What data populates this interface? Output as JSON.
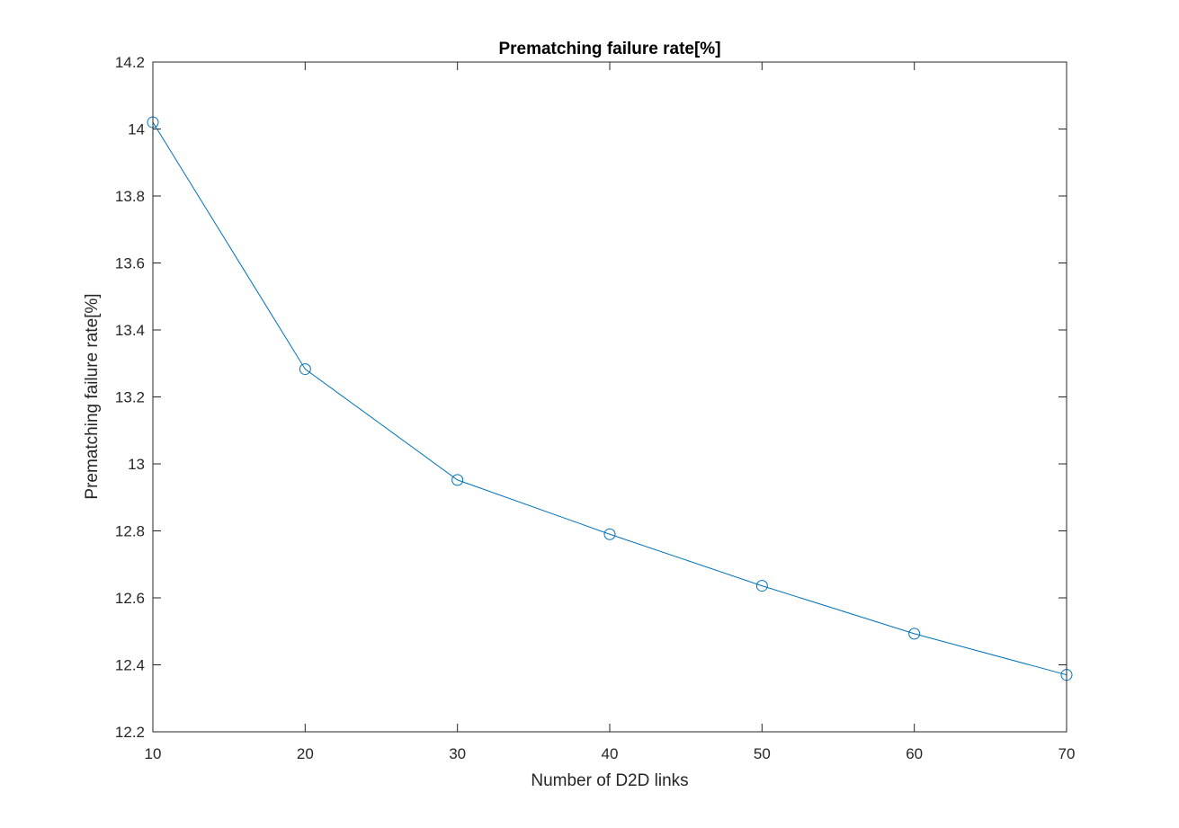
{
  "chart_data": {
    "type": "line",
    "title": "Prematching failure rate[%]",
    "xlabel": "Number of D2D links",
    "ylabel": "Prematching failure rate[%]",
    "xlim": [
      10,
      70
    ],
    "ylim": [
      12.2,
      14.2
    ],
    "xticks": [
      10,
      20,
      30,
      40,
      50,
      60,
      70
    ],
    "yticks": [
      12.2,
      12.4,
      12.6,
      12.8,
      13,
      13.2,
      13.4,
      13.6,
      13.8,
      14,
      14.2
    ],
    "xtick_labels": [
      "10",
      "20",
      "30",
      "40",
      "50",
      "60",
      "70"
    ],
    "ytick_labels": [
      "12.2",
      "12.4",
      "12.6",
      "12.8",
      "13",
      "13.2",
      "13.4",
      "13.6",
      "13.8",
      "14",
      "14.2"
    ],
    "grid": false,
    "series": [
      {
        "color": "#0072BD",
        "marker": "circle",
        "x": [
          10,
          20,
          30,
          40,
          50,
          60,
          70
        ],
        "y": [
          14.02,
          13.283,
          12.952,
          12.79,
          12.636,
          12.493,
          12.37
        ]
      }
    ]
  }
}
